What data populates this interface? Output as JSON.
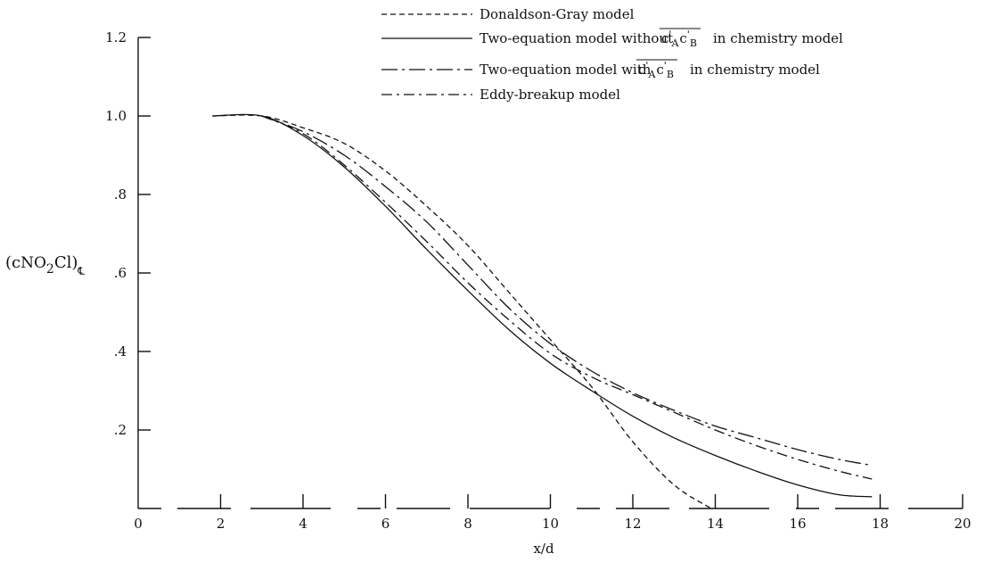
{
  "chart_data": {
    "type": "line",
    "xlabel": "x/d",
    "ylabel": "(c",
    "ylabel_sub": "NO",
    "ylabel_sub2": "2",
    "ylabel_mid": "Cl)",
    "ylabel_sub3": "℄",
    "xlim": [
      0,
      20
    ],
    "ylim": [
      0,
      1.2
    ],
    "x_ticks": [
      0,
      2,
      4,
      6,
      8,
      10,
      12,
      14,
      16,
      18,
      20
    ],
    "x_tick_labels": [
      "0",
      "2",
      "4",
      "6",
      "8",
      "10",
      "12",
      "14",
      "16",
      "18",
      "20"
    ],
    "y_ticks": [
      0.2,
      0.4,
      0.6,
      0.8,
      1.0,
      1.2
    ],
    "y_tick_labels": [
      ".2",
      ".4",
      ".6",
      ".8",
      "1.0",
      "1.2"
    ],
    "legend_position": "top-right",
    "legend": [
      {
        "style": "dashed",
        "text": "Donaldson-Gray model"
      },
      {
        "style": "solid",
        "text_before": "Two-equation model without",
        "term_c": "c",
        "term_a": "A",
        "term_b": "B",
        "text_after": "in chemistry model"
      },
      {
        "style": "longdashdot",
        "text_before": "Two-equation model with",
        "term_c": "c",
        "term_a": "A",
        "term_b": "B",
        "text_after": "in chemistry model"
      },
      {
        "style": "dashdot",
        "text": "Eddy-breakup model"
      }
    ],
    "series": [
      {
        "style": "dashed",
        "x": [
          1.8,
          3.0,
          4.0,
          5.0,
          6.0,
          7.0,
          8.0,
          9.0,
          10.0,
          11.0,
          12.0,
          13.0,
          13.9
        ],
        "y": [
          1.0,
          1.0,
          0.97,
          0.93,
          0.86,
          0.77,
          0.67,
          0.55,
          0.43,
          0.31,
          0.17,
          0.06,
          0.0
        ]
      },
      {
        "style": "solid",
        "x": [
          1.8,
          3.0,
          4.0,
          5.0,
          6.0,
          7.0,
          8.0,
          9.0,
          10.0,
          11.0,
          12.0,
          13.0,
          14.0,
          15.0,
          16.0,
          17.0,
          17.8
        ],
        "y": [
          1.0,
          1.0,
          0.95,
          0.87,
          0.77,
          0.66,
          0.555,
          0.455,
          0.37,
          0.3,
          0.235,
          0.18,
          0.135,
          0.095,
          0.06,
          0.035,
          0.03
        ]
      },
      {
        "style": "longdashdot",
        "x": [
          3.0,
          4.0,
          5.0,
          6.0,
          7.0,
          8.0,
          9.0,
          10.0,
          11.0,
          12.0,
          13.0,
          14.0,
          15.0,
          16.0,
          17.0,
          17.8
        ],
        "y": [
          1.0,
          0.96,
          0.9,
          0.82,
          0.73,
          0.62,
          0.51,
          0.42,
          0.35,
          0.295,
          0.25,
          0.21,
          0.18,
          0.15,
          0.125,
          0.11
        ]
      },
      {
        "style": "dashdot",
        "x": [
          3.0,
          4.0,
          5.0,
          6.0,
          7.0,
          8.0,
          9.0,
          10.0,
          11.0,
          12.0,
          13.0,
          14.0,
          15.0,
          16.0,
          17.0,
          17.8
        ],
        "y": [
          1.0,
          0.955,
          0.875,
          0.78,
          0.68,
          0.575,
          0.48,
          0.395,
          0.335,
          0.29,
          0.245,
          0.2,
          0.16,
          0.125,
          0.095,
          0.075
        ]
      }
    ]
  }
}
